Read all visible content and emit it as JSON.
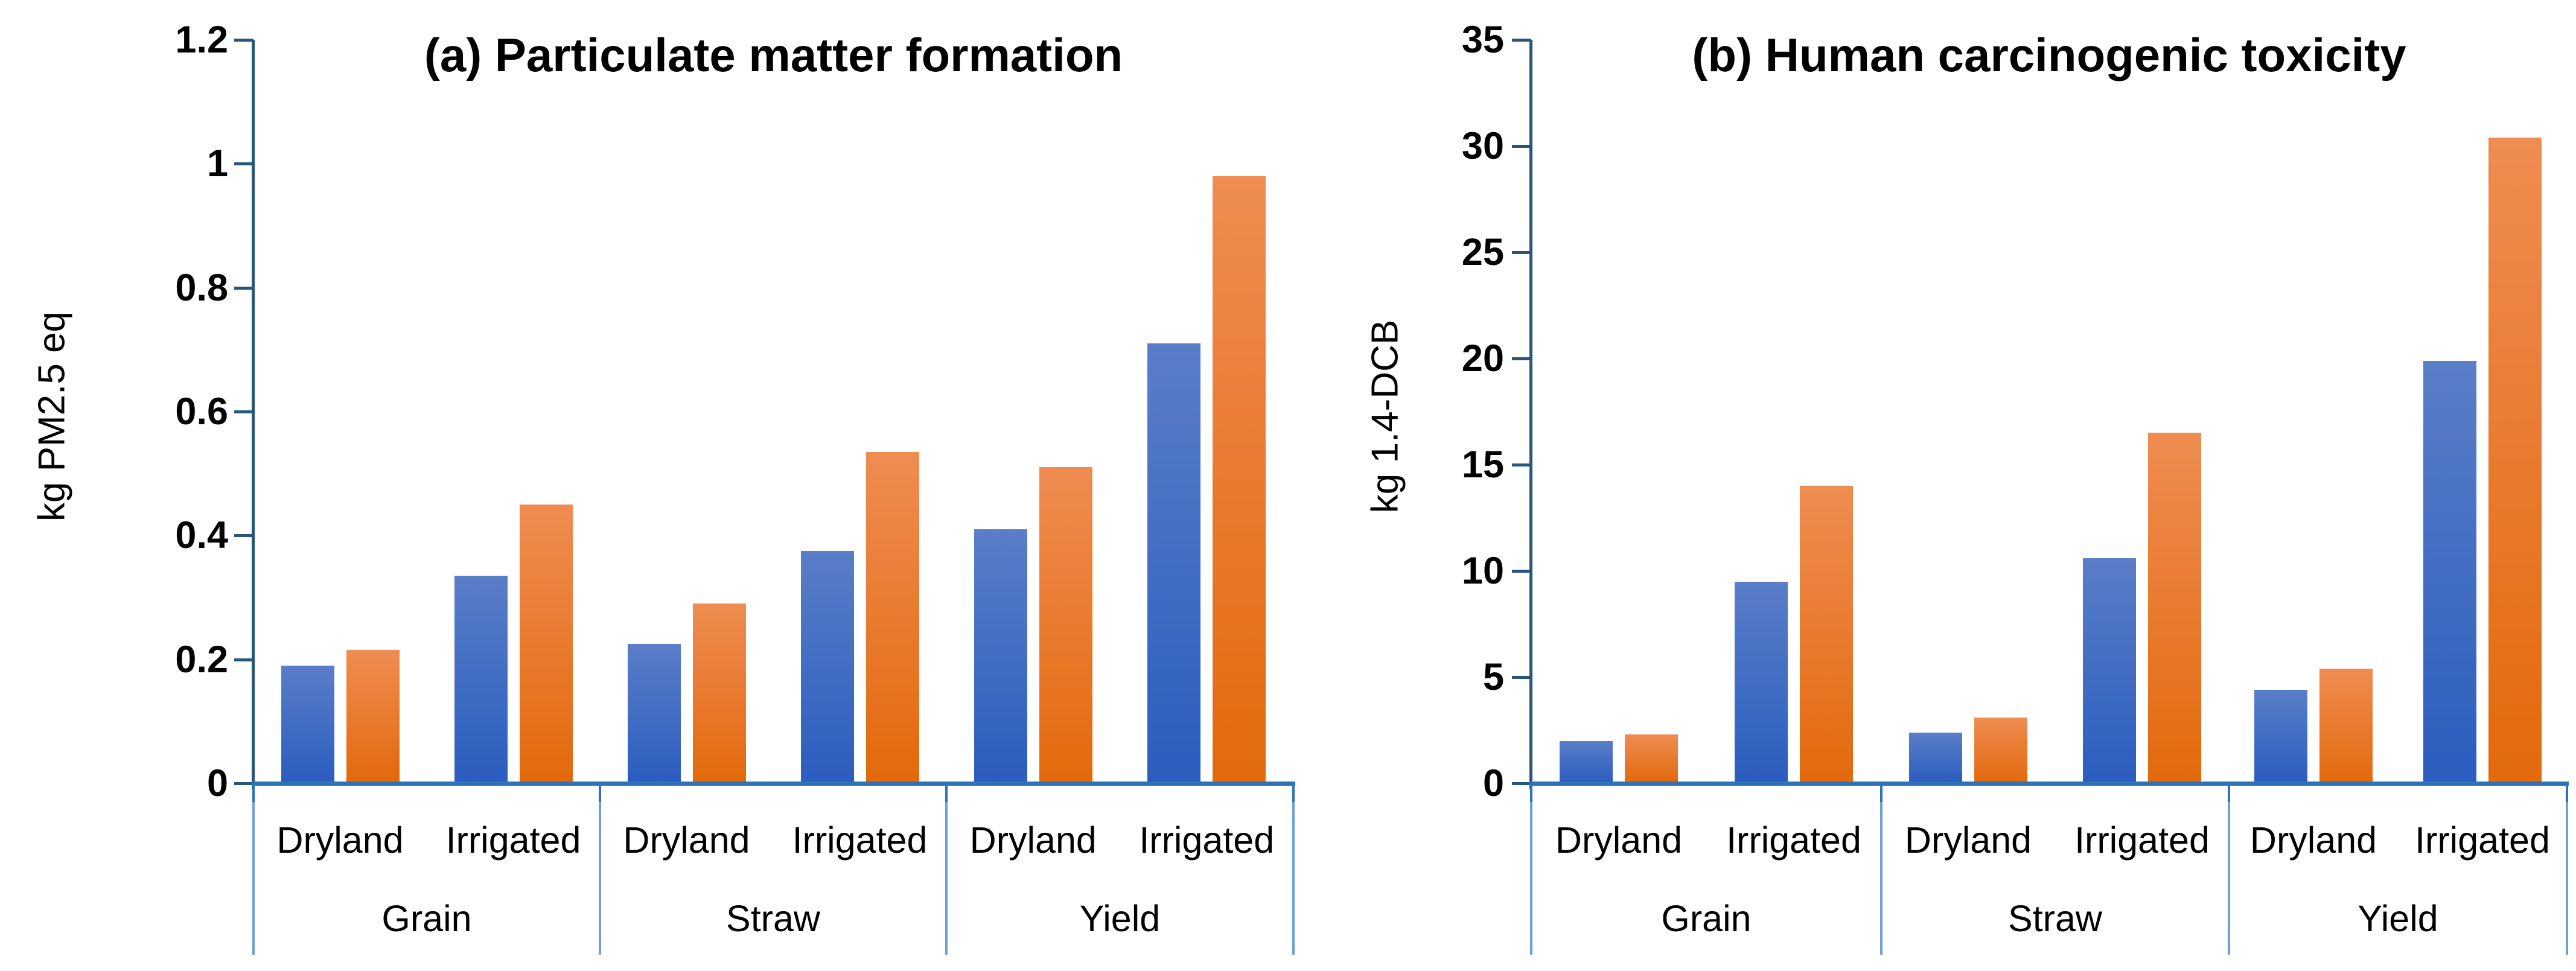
{
  "figure": {
    "background": "#ffffff",
    "text_color": "#000000",
    "series_colors": {
      "blue": {
        "top": "#5A7EC8",
        "bottom": "#2B5DBF"
      },
      "orange": {
        "top": "#EF8C51",
        "bottom": "#E2690C"
      }
    },
    "axis_colors": {
      "y_axis": "#27557B",
      "x_axis": "#2E74B5",
      "separator": "#6FA0D0"
    }
  },
  "chart_data": [
    {
      "type": "bar",
      "panel": "a",
      "title": "(a) Particulate matter formation",
      "ylabel": "kg PM2.5 eq",
      "xlabel": "",
      "ylim": [
        0,
        1.2
      ],
      "ytick_step": 0.2,
      "ytick_labels": [
        "1.2",
        "1",
        "0.8",
        "0.6",
        "0.4",
        "0.2",
        "0"
      ],
      "grid": false,
      "legend": "none",
      "groups": [
        "Grain",
        "Straw",
        "Yield"
      ],
      "subgroups": [
        "Dryland",
        "Irrigated"
      ],
      "categories": [
        "Grain Dryland",
        "Grain Irrigated",
        "Straw Dryland",
        "Straw Irrigated",
        "Yield Dryland",
        "Yield Irrigated"
      ],
      "series": [
        {
          "name": "blue",
          "values": [
            0.19,
            0.335,
            0.225,
            0.375,
            0.41,
            0.71
          ]
        },
        {
          "name": "orange",
          "values": [
            0.215,
            0.45,
            0.29,
            0.535,
            0.51,
            0.98
          ]
        }
      ]
    },
    {
      "type": "bar",
      "panel": "b",
      "title": "(b) Human carcinogenic toxicity",
      "ylabel": "kg 1.4-DCB",
      "xlabel": "",
      "ylim": [
        0,
        35
      ],
      "ytick_step": 5,
      "ytick_labels": [
        "35",
        "30",
        "25",
        "20",
        "15",
        "10",
        "5",
        "0"
      ],
      "grid": false,
      "legend": "none",
      "groups": [
        "Grain",
        "Straw",
        "Yield"
      ],
      "subgroups": [
        "Dryland",
        "Irrigated"
      ],
      "categories": [
        "Grain Dryland",
        "Grain Irrigated",
        "Straw Dryland",
        "Straw Irrigated",
        "Yield Dryland",
        "Yield Irrigated"
      ],
      "series": [
        {
          "name": "blue",
          "values": [
            2.0,
            9.5,
            2.4,
            10.6,
            4.4,
            19.9
          ]
        },
        {
          "name": "orange",
          "values": [
            2.3,
            14.0,
            3.1,
            16.5,
            5.4,
            30.4
          ]
        }
      ]
    }
  ]
}
